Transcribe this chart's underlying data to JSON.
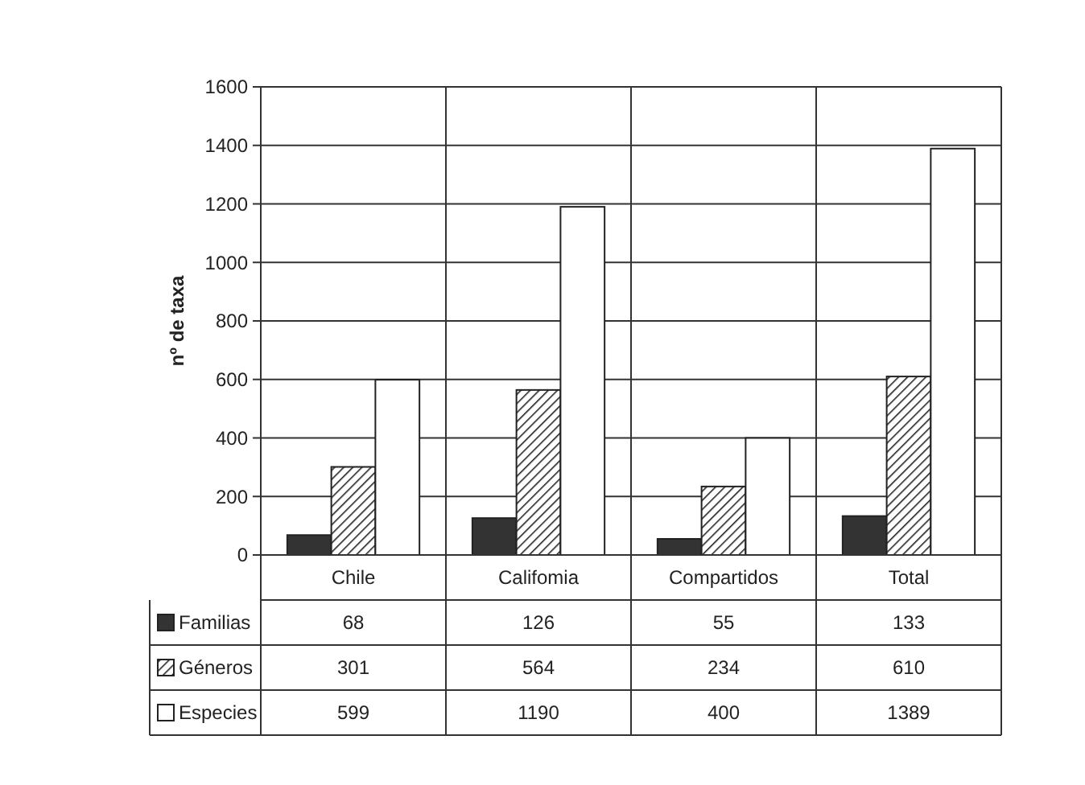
{
  "chart_data": {
    "type": "bar",
    "ylabel": "nº de taxa",
    "categories": [
      "Chile",
      "Califomia",
      "Compartidos",
      "Total"
    ],
    "series": [
      {
        "name": "Familias",
        "color": "#333333",
        "values": [
          68,
          126,
          55,
          133
        ]
      },
      {
        "name": "Géneros",
        "color": "#222222",
        "values": [
          301,
          564,
          234,
          610
        ]
      },
      {
        "name": "Especies",
        "color": "#ffffff",
        "values": [
          599,
          1190,
          400,
          1389
        ]
      }
    ],
    "ylim": [
      0,
      1600
    ],
    "yticks": [
      0,
      200,
      400,
      600,
      800,
      1000,
      1200,
      1400,
      1600
    ],
    "grid": "y",
    "data_labels": true,
    "legend": "bottom"
  }
}
